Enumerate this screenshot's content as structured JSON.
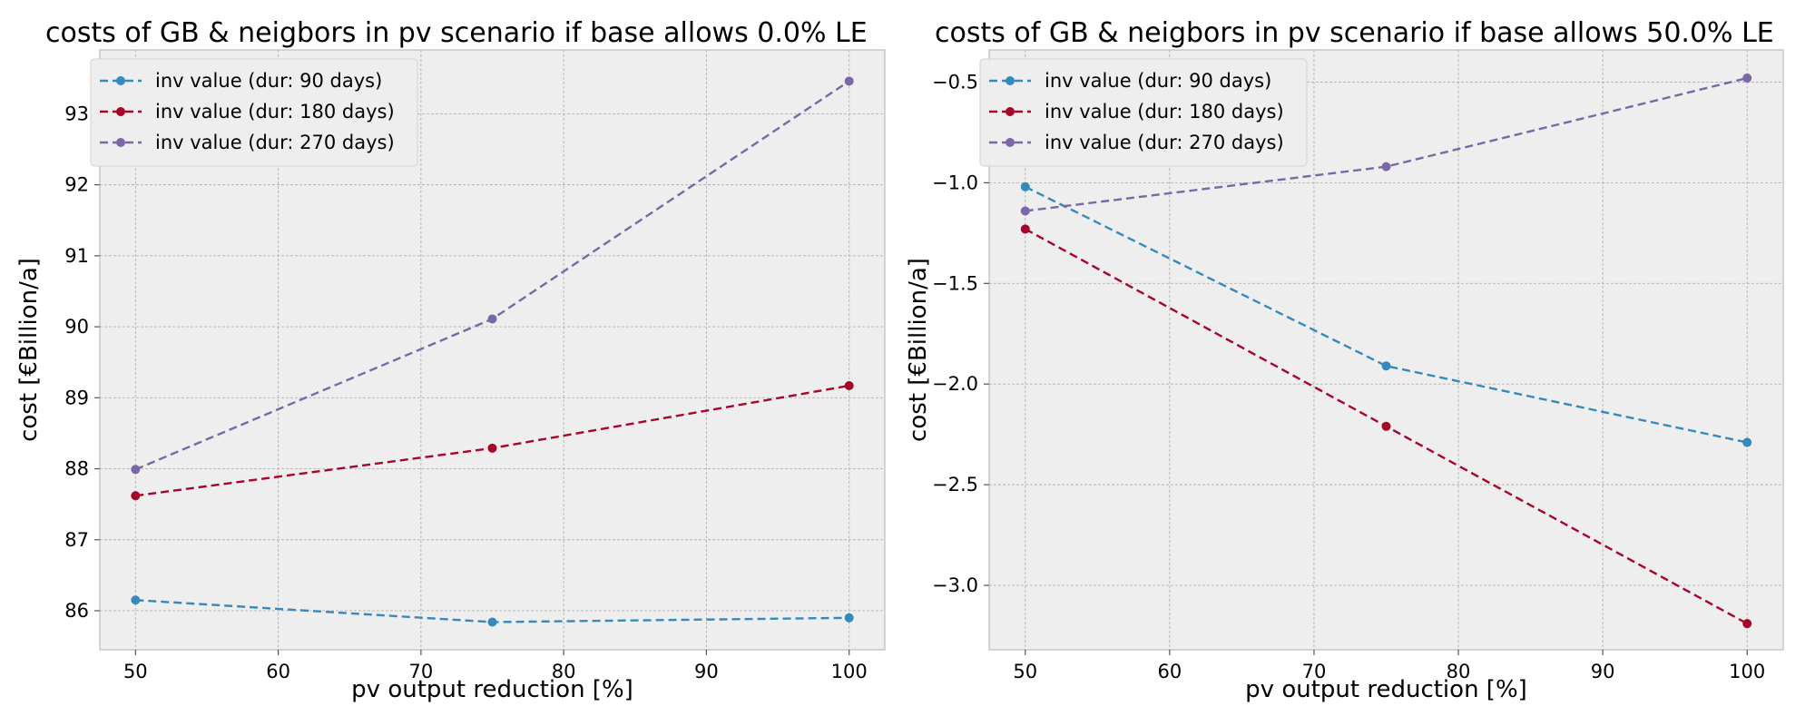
{
  "colors": {
    "series_blue": "#348abd",
    "series_red": "#a60628",
    "series_purple": "#7a68a6",
    "plot_background": "#eeeeee",
    "grid": "#b2b2b2"
  },
  "chart_data": [
    {
      "type": "line",
      "title": "costs of GB & neigbors in pv scenario if base allows 0.0% LE",
      "xlabel": "pv output reduction [%]",
      "ylabel": "cost [€Billion/a]",
      "x": [
        50,
        75,
        100
      ],
      "xlim": [
        47.5,
        102.5
      ],
      "ylim": [
        85.45,
        93.9
      ],
      "xticks": [
        50,
        60,
        70,
        80,
        90,
        100
      ],
      "yticks": [
        86,
        87,
        88,
        89,
        90,
        91,
        92,
        93
      ],
      "grid": true,
      "legend_position": "top-left",
      "series": [
        {
          "name": "inv value (dur: 90 days)",
          "color": "#348abd",
          "values": [
            86.15,
            85.84,
            85.9
          ]
        },
        {
          "name": "inv value (dur: 180 days)",
          "color": "#a60628",
          "values": [
            87.62,
            88.29,
            89.17
          ]
        },
        {
          "name": "inv value (dur: 270 days)",
          "color": "#7a68a6",
          "values": [
            87.99,
            90.11,
            93.46
          ]
        }
      ]
    },
    {
      "type": "line",
      "title": "costs of GB & neigbors in pv scenario if base allows 50.0% LE",
      "xlabel": "pv output reduction [%]",
      "ylabel": "cost [€Billion/a]",
      "x": [
        50,
        75,
        100
      ],
      "xlim": [
        47.5,
        102.5
      ],
      "ylim": [
        -3.32,
        -0.34
      ],
      "xticks": [
        50,
        60,
        70,
        80,
        90,
        100
      ],
      "yticks": [
        -3.0,
        -2.5,
        -2.0,
        -1.5,
        -1.0,
        -0.5
      ],
      "grid": true,
      "legend_position": "top-left",
      "series": [
        {
          "name": "inv value (dur: 90 days)",
          "color": "#348abd",
          "values": [
            -1.02,
            -1.91,
            -2.29
          ]
        },
        {
          "name": "inv value (dur: 180 days)",
          "color": "#a60628",
          "values": [
            -1.23,
            -2.21,
            -3.19
          ]
        },
        {
          "name": "inv value (dur: 270 days)",
          "color": "#7a68a6",
          "values": [
            -1.14,
            -0.92,
            -0.48
          ]
        }
      ]
    }
  ]
}
